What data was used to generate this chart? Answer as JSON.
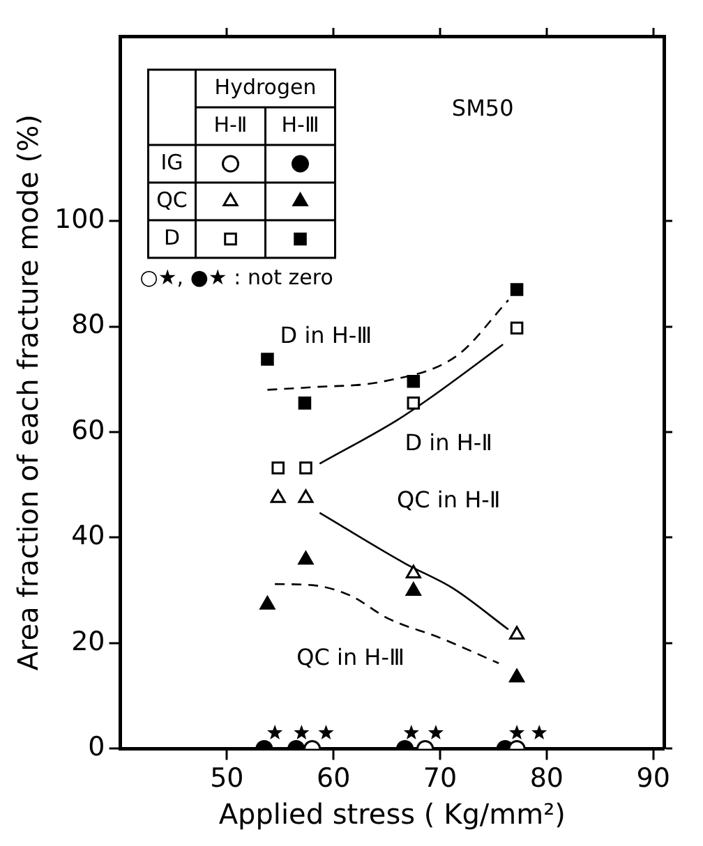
{
  "chart_data": {
    "type": "scatter",
    "xlabel": "Applied stress ( Kg/mm²)",
    "ylabel": "Area fraction of each fracture mode (%)",
    "legend_title": "Hydrogen",
    "xlim": [
      40,
      91
    ],
    "xticks": [
      50,
      60,
      70,
      80,
      90
    ],
    "ylim": [
      0,
      135
    ],
    "yticks": [
      0,
      20,
      40,
      60,
      80,
      100
    ],
    "grid": false,
    "legend": "top left",
    "annotations": [
      "H-Ⅱ",
      "H-Ⅲ",
      "○★, ●★ : not zero",
      "SM50",
      "D in H-Ⅲ",
      "D in H-Ⅱ",
      "QC in H-Ⅱ",
      "QC in H-Ⅲ"
    ],
    "series": [
      {
        "name": "IG",
        "marker": "circle",
        "color": "#ffffff",
        "x": [
          58,
          68.6,
          77.2
        ],
        "values": [
          0,
          0,
          0
        ]
      },
      {
        "marker": "circle",
        "color": "#000000",
        "x": [
          53.5,
          56.5,
          66.7,
          76.1
        ],
        "values": [
          0,
          0,
          0,
          0
        ]
      },
      {
        "marker": "star",
        "color": "#000000",
        "x": [
          54.5,
          57.0,
          59.3,
          67.3,
          69.6,
          77.2,
          79.3
        ],
        "values": [
          3,
          3,
          3,
          3,
          3,
          3,
          3
        ]
      },
      {
        "name": "QC",
        "marker": "triangle",
        "color": "#ffffff",
        "x": [
          54.8,
          57.4,
          67.5,
          77.2
        ],
        "values": [
          47.5,
          47.5,
          33.2,
          21.6
        ]
      },
      {
        "marker": "triangle",
        "color": "#000000",
        "x": [
          53.8,
          57.4,
          67.5,
          77.2
        ],
        "values": [
          27.3,
          35.8,
          29.9,
          13.5
        ]
      },
      {
        "name": "D",
        "marker": "square",
        "color": "#ffffff",
        "x": [
          54.8,
          57.4,
          67.5,
          77.2
        ],
        "values": [
          53.2,
          53.2,
          65.5,
          79.7
        ]
      },
      {
        "marker": "square",
        "color": "#000000",
        "x": [
          53.8,
          57.3,
          67.5,
          77.2
        ],
        "values": [
          73.8,
          65.5,
          69.6,
          87
        ]
      },
      {
        "type": "line",
        "line_style": "dashed",
        "color": "#000000",
        "x": [
          53.8,
          58,
          64.7,
          71.6,
          76.4
        ],
        "values": [
          68,
          68.5,
          69.6,
          74.5,
          85
        ]
      },
      {
        "type": "line",
        "line_style": "solid",
        "color": "#000000",
        "x": [
          58.7,
          66,
          69.3,
          75.9
        ],
        "values": [
          54,
          62.3,
          66.8,
          76.6
        ]
      },
      {
        "type": "line",
        "line_style": "solid",
        "color": "#000000",
        "x": [
          58.7,
          66.8,
          71.2,
          76.4
        ],
        "values": [
          44.7,
          35,
          30.4,
          22.6
        ]
      },
      {
        "type": "line",
        "line_style": "dashed",
        "color": "#000000",
        "x": [
          54.5,
          58,
          61.6,
          65.1,
          70,
          75.5
        ],
        "values": [
          31.2,
          31,
          29,
          24.7,
          21,
          16.2
        ]
      }
    ]
  }
}
